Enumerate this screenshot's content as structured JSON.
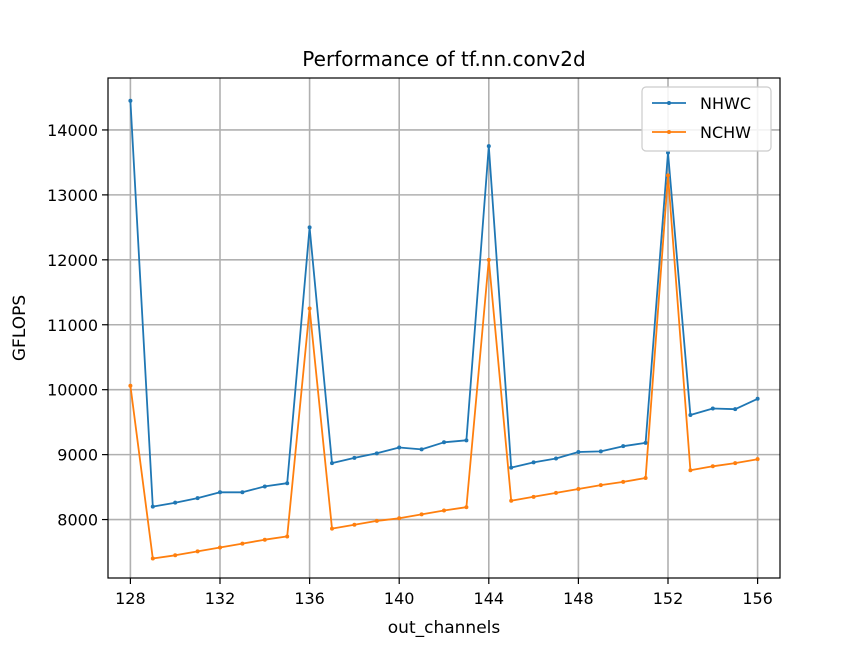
{
  "chart_data": {
    "type": "line",
    "title": "Performance of tf.nn.conv2d",
    "xlabel": "out_channels",
    "ylabel": "GFLOPS",
    "xlim": [
      127,
      157
    ],
    "ylim": [
      7100,
      14800
    ],
    "xticks": [
      128,
      132,
      136,
      140,
      144,
      148,
      152,
      156
    ],
    "yticks": [
      8000,
      9000,
      10000,
      11000,
      12000,
      13000,
      14000
    ],
    "grid": true,
    "legend": "top-right",
    "x": [
      128,
      129,
      130,
      131,
      132,
      133,
      134,
      135,
      136,
      137,
      138,
      139,
      140,
      141,
      142,
      143,
      144,
      145,
      146,
      147,
      148,
      149,
      150,
      151,
      152,
      153,
      154,
      155,
      156
    ],
    "series": [
      {
        "name": "NHWC",
        "color": "#1f77b4",
        "values": [
          14450,
          8200,
          8260,
          8330,
          8420,
          8420,
          8510,
          8560,
          12500,
          8870,
          8950,
          9020,
          9110,
          9080,
          9190,
          9220,
          13750,
          8800,
          8880,
          8940,
          9040,
          9050,
          9130,
          9180,
          13650,
          9610,
          9710,
          9700,
          9860
        ]
      },
      {
        "name": "NCHW",
        "color": "#ff7f0e",
        "values": [
          10060,
          7400,
          7450,
          7510,
          7570,
          7630,
          7690,
          7740,
          11250,
          7860,
          7920,
          7980,
          8020,
          8080,
          8140,
          8190,
          12000,
          8290,
          8350,
          8410,
          8470,
          8530,
          8580,
          8640,
          13300,
          8760,
          8820,
          8870,
          8930
        ]
      }
    ]
  }
}
